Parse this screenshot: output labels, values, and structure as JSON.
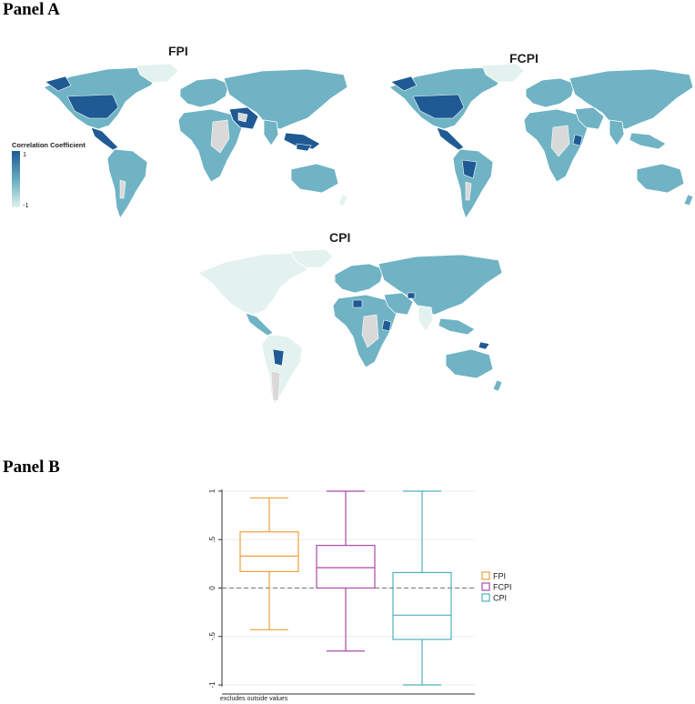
{
  "panel_a": {
    "label": "Panel A",
    "maps": [
      {
        "id": "fpi",
        "title": "FPI"
      },
      {
        "id": "fcpi",
        "title": "FCPI"
      },
      {
        "id": "cpi",
        "title": "CPI"
      }
    ],
    "legend": {
      "title": "Correlation Coefficient",
      "max_label": "1",
      "min_label": "-1",
      "colors": {
        "high": "#1f5a94",
        "mid": "#6fb3c4",
        "low": "#e3f2ee",
        "nodata": "#d9d9d9",
        "border": "#ffffff"
      }
    }
  },
  "panel_b": {
    "label": "Panel B",
    "note": "excludes outside values",
    "chart_data": {
      "type": "box",
      "ylim": [
        -1,
        1
      ],
      "yticks": [
        1,
        0.5,
        0,
        -0.5,
        -1
      ],
      "ytick_labels": [
        "1",
        ".5",
        "0",
        "-.5",
        "-1"
      ],
      "reference_line": 0,
      "legend_position": "right",
      "series": [
        {
          "name": "FPI",
          "color": "#f0a03c",
          "min": -0.43,
          "q1": 0.17,
          "median": 0.33,
          "q3": 0.58,
          "max": 0.93
        },
        {
          "name": "FCPI",
          "color": "#a84aa8",
          "min": -0.65,
          "q1": 0.0,
          "median": 0.21,
          "q3": 0.44,
          "max": 1.0
        },
        {
          "name": "CPI",
          "color": "#4fb0bf",
          "min": -1.0,
          "q1": -0.53,
          "median": -0.28,
          "q3": 0.16,
          "max": 1.0
        }
      ]
    }
  }
}
